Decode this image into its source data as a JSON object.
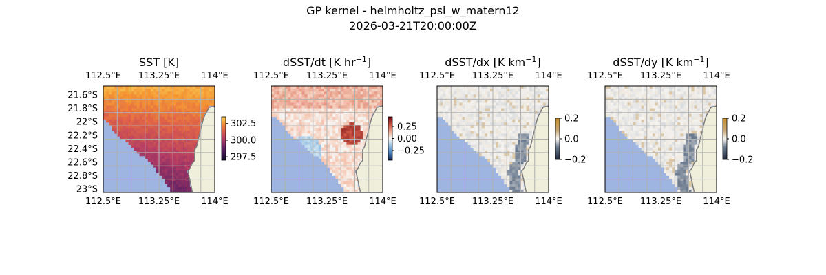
{
  "figure": {
    "title": "GP kernel - helmholtz_psi_w_matern12",
    "subtitle": "2026-03-21T20:00:00Z"
  },
  "colors": {
    "land": "#efefdb",
    "ocean_nodata": "#9db5e0",
    "coastline": "#7c7c7c",
    "grid": "#b0b0b0"
  },
  "chart_data": [
    {
      "type": "heatmap",
      "title_base": "SST [K]",
      "title_sup": "",
      "title_suffix": "",
      "colormap": "inferno-like",
      "x_ticks": [
        "112.5°E",
        "113.25°E",
        "114°E"
      ],
      "y_ticks": [
        "21.6°S",
        "21.8°S",
        "22°S",
        "22.2°S",
        "22.4°S",
        "22.6°S",
        "22.8°S",
        "23°S"
      ],
      "show_y_ticks": true,
      "colorbar": {
        "ticks": [
          "302.5",
          "300.0",
          "297.5"
        ],
        "tick_values": [
          302.5,
          300.0,
          297.5
        ],
        "range": [
          297.0,
          303.5
        ]
      },
      "field_range": [
        299.0,
        302.8
      ]
    },
    {
      "type": "heatmap",
      "title_base": "dSST/dt [K hr",
      "title_sup": "−1",
      "title_suffix": "]",
      "colormap": "RdBu_r",
      "x_ticks": [
        "112.5°E",
        "113.25°E",
        "114°E"
      ],
      "y_ticks": [],
      "show_y_ticks": false,
      "colorbar": {
        "ticks": [
          "0.25",
          "0.00",
          "−0.25"
        ],
        "tick_values": [
          0.25,
          0.0,
          -0.25
        ],
        "range": [
          -0.45,
          0.45
        ]
      },
      "field_range": [
        -0.2,
        0.4
      ]
    },
    {
      "type": "heatmap",
      "title_base": "dSST/dx [K km",
      "title_sup": "−1",
      "title_suffix": "]",
      "colormap": "diverging-brown-gray",
      "x_ticks": [
        "112.5°E",
        "113.25°E",
        "114°E"
      ],
      "y_ticks": [],
      "show_y_ticks": false,
      "colorbar": {
        "ticks": [
          "0.2",
          "0.0",
          "−0.2"
        ],
        "tick_values": [
          0.2,
          0.0,
          -0.2
        ],
        "range": [
          -0.2,
          0.2
        ]
      },
      "field_range": [
        -0.15,
        0.1
      ]
    },
    {
      "type": "heatmap",
      "title_base": "dSST/dy [K km",
      "title_sup": "−1",
      "title_suffix": "]",
      "colormap": "diverging-brown-gray",
      "x_ticks": [
        "112.5°E",
        "113.25°E",
        "114°E"
      ],
      "y_ticks": [],
      "show_y_ticks": false,
      "colorbar": {
        "ticks": [
          "0.2",
          "0.0",
          "−0.2"
        ],
        "tick_values": [
          0.2,
          0.0,
          -0.2
        ],
        "range": [
          -0.2,
          0.2
        ]
      },
      "field_range": [
        -0.15,
        0.1
      ]
    }
  ]
}
